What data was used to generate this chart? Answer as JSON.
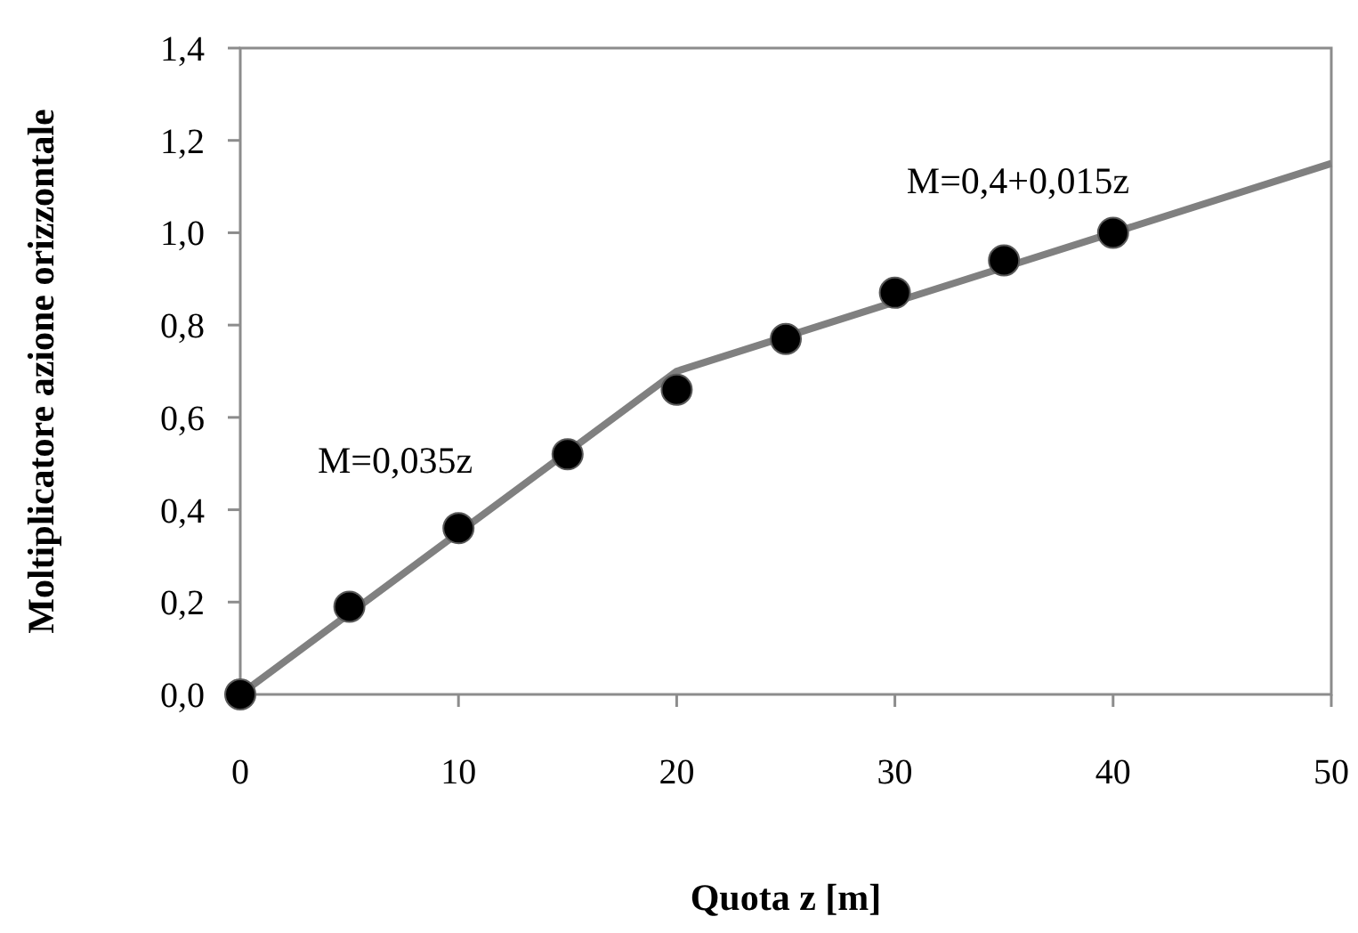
{
  "chart_data": {
    "type": "scatter",
    "xlabel": "Quota z [m]",
    "ylabel": "Moltiplicatore azione orizzontale",
    "xlim": [
      0,
      50
    ],
    "xticks": [
      0,
      10,
      20,
      30,
      40,
      50
    ],
    "ylim": [
      0,
      1.4
    ],
    "yticks": [
      {
        "value": 0,
        "label": "0,0"
      },
      {
        "value": 0.2,
        "label": "0,2"
      },
      {
        "value": 0.4,
        "label": "0,4"
      },
      {
        "value": 0.6,
        "label": "0,6"
      },
      {
        "value": 0.8,
        "label": "0,8"
      },
      {
        "value": 1.0,
        "label": "1,0"
      },
      {
        "value": 1.2,
        "label": "1,2"
      },
      {
        "value": 1.4,
        "label": "1,4"
      }
    ],
    "grid": false,
    "series": [
      {
        "type": "line",
        "color": "#808080",
        "marker": "none",
        "line_style": "solid",
        "x": [
          0,
          20,
          50
        ],
        "values": [
          0,
          0.7,
          1.15
        ]
      },
      {
        "color": "#000000",
        "marker": "circle",
        "x": [
          0,
          5,
          10,
          15,
          20,
          25,
          30,
          35,
          40
        ],
        "values": [
          0,
          0.19,
          0.36,
          0.52,
          0.66,
          0.77,
          0.87,
          0.94,
          1.0
        ]
      }
    ],
    "annotations": [
      "M=0,035z",
      "M=0,4+0,015z"
    ]
  }
}
